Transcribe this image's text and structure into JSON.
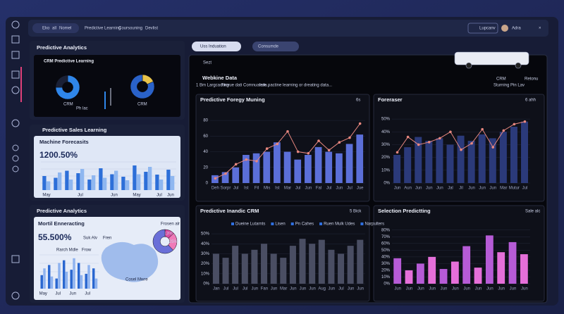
{
  "header": {
    "tabs": [
      "Eko",
      "all",
      "Nomel",
      "Predictive Learning",
      "Coursouning",
      "Devlist"
    ],
    "button": "Lupcanv",
    "user": "Adra"
  },
  "toolbar": {
    "search": "Uss Induation",
    "select": "Consumde"
  },
  "panel_1": {
    "title": "Predictive Analytics",
    "subtitle": "CRM Predictive Learning",
    "labels": [
      "CRM",
      "Ph lac",
      "CRM"
    ]
  },
  "panel_2": {
    "title": "Predictive Sales Learning",
    "kpi": "1200.50%"
  },
  "panel_3": {
    "title": "Predictive Analytics",
    "kpi": "55.500%",
    "chips": [
      "Frosen alr",
      "Suk Alv",
      "Fren",
      "Rarch Mdle",
      "Frow"
    ],
    "map_label": "Cosel Mwre"
  },
  "main": {
    "tab": "Sezt",
    "title": "Webkine Data",
    "filters": [
      "1 Bm Largcacting",
      "Fiovue dati Comnuatem...",
      "Irde pactine learning or dreating data..."
    ],
    "right": [
      "CRM",
      "Retonu",
      "Sturning",
      "Pin Lav"
    ]
  },
  "chart_data": [
    {
      "type": "pie",
      "values": [
        75,
        25
      ],
      "colors": [
        "#2f86ea",
        "#1a2036"
      ],
      "hole": 0.45
    },
    {
      "type": "pie",
      "values": [
        18,
        82
      ],
      "colors": [
        "#e8c34a",
        "#2a62c9"
      ],
      "hole": 0.45
    },
    {
      "type": "bar",
      "title": "Machine Forecasits",
      "categories": [
        "May",
        null,
        null,
        "Jul",
        null,
        null,
        "Jun",
        null,
        "May",
        null,
        "Jul",
        "Jun"
      ],
      "series": [
        {
          "color": "#2d6fd8",
          "values": [
            40,
            35,
            55,
            48,
            30,
            62,
            45,
            38,
            70,
            52,
            44,
            58
          ]
        },
        {
          "color": "#8fb7f0",
          "values": [
            25,
            50,
            30,
            60,
            42,
            35,
            55,
            28,
            45,
            66,
            30,
            40
          ]
        }
      ],
      "ylim": [
        0,
        80
      ],
      "grid": true
    },
    {
      "type": "bar",
      "title": "Mortil Enneracting",
      "categories": [
        "May",
        null,
        "Jul",
        null,
        "Jun",
        null,
        "Jul",
        null
      ],
      "series": [
        {
          "color": "#2a67d0",
          "values": [
            20,
            35,
            15,
            42,
            28,
            38,
            22,
            30
          ]
        },
        {
          "color": "#8fb3ef",
          "values": [
            30,
            18,
            38,
            25,
            45,
            20,
            35,
            15
          ]
        }
      ],
      "ylim": [
        0,
        50
      ],
      "grid": true
    },
    {
      "type": "pie",
      "values": [
        13,
        25,
        62
      ],
      "value_labels": [
        "13%",
        "25%",
        null
      ],
      "colors": [
        "#d94aa0",
        "#f07ab8",
        "#6a6fd8"
      ],
      "hole": 0.4
    },
    {
      "type": "combo",
      "title": "Predictive Foregy Muning",
      "control": "6s",
      "categories": [
        "Deh",
        "Sorpr",
        "Jul",
        "Ist",
        "Fil",
        "Mis",
        "Ist",
        "Mar",
        "Jul",
        "Jun",
        "Fal",
        "Jul",
        "Jun",
        "Jul",
        "Jue"
      ],
      "series": [
        {
          "type": "bar",
          "color": "#5b6fd8",
          "values": [
            10,
            14,
            20,
            36,
            38,
            40,
            52,
            40,
            30,
            36,
            46,
            40,
            38,
            50,
            62
          ]
        },
        {
          "type": "line",
          "color": "#e8877f",
          "values": [
            6,
            12,
            24,
            30,
            28,
            44,
            50,
            66,
            40,
            38,
            54,
            42,
            52,
            58,
            76
          ]
        }
      ],
      "ylim": [
        0,
        90
      ],
      "yticks": [
        0,
        20,
        40,
        60,
        80
      ],
      "grid": true
    },
    {
      "type": "combo",
      "title": "Foreraser",
      "control": "6 ahh",
      "categories": [
        "Jun",
        "Aun",
        "Jun",
        "Jun",
        "Jun",
        "Jal",
        "Jil",
        "Jun",
        "Jun",
        "Jun",
        "Mar",
        "Mutur",
        "Jul"
      ],
      "series": [
        {
          "type": "bar",
          "color": "#2b3a7a",
          "values": [
            22,
            28,
            36,
            33,
            35,
            30,
            37,
            33,
            38,
            35,
            40,
            44,
            48
          ]
        },
        {
          "type": "line",
          "color": "#e8877f",
          "values": [
            24,
            36,
            30,
            32,
            35,
            40,
            26,
            31,
            42,
            28,
            41,
            46,
            48
          ]
        }
      ],
      "ylim": [
        0,
        55
      ],
      "yticks": [
        {
          "value": 0,
          "label": "0%"
        },
        {
          "value": 10,
          "label": "10%"
        },
        {
          "value": 20,
          "label": "20%"
        },
        {
          "value": 30,
          "label": "30%"
        },
        {
          "value": 40,
          "label": "40%"
        },
        {
          "value": 50,
          "label": "50%"
        }
      ],
      "grid": true
    },
    {
      "type": "bar",
      "title": "Predictive Inandic CRM",
      "control": "5 Bick",
      "legend": [
        "Dueine Lutarnts",
        "Lisen",
        "Pn Cahes",
        "Ruen Mulk Udes",
        "Narpulters"
      ],
      "legend_color": "#2f6fe0",
      "categories": [
        "Jan",
        "Jul",
        "Jul",
        "Jul",
        "Jun",
        "Fan",
        "Jun",
        "Mar",
        "Jun",
        "Jun",
        "Jun",
        "Aug",
        "Jun",
        "Jul",
        "Jun",
        "Jun"
      ],
      "series": [
        {
          "color": "#4a4e63",
          "values": [
            30,
            26,
            38,
            30,
            34,
            40,
            30,
            26,
            38,
            45,
            40,
            44,
            34,
            30,
            38,
            44
          ]
        }
      ],
      "ylim": [
        0,
        55
      ],
      "yticks": [
        {
          "value": 0,
          "label": "0%"
        },
        {
          "value": 10,
          "label": "10%"
        },
        {
          "value": 20,
          "label": "20%"
        },
        {
          "value": 30,
          "label": "30%"
        },
        {
          "value": 40,
          "label": "40%"
        },
        {
          "value": 50,
          "label": "50%"
        }
      ],
      "grid": true
    },
    {
      "type": "bar",
      "title": "Selection Predictting",
      "control": "Sale alc",
      "categories": [
        "Jun",
        "Jun",
        "Jun",
        "Jun",
        "Jun",
        "Jun",
        "Jun",
        "Jun",
        "Jun",
        "Jun",
        "Jun",
        "Jun"
      ],
      "series": [
        {
          "colors": [
            "#b65bd6",
            "#e56fd9"
          ],
          "values": [
            38,
            20,
            30,
            40,
            22,
            33,
            56,
            24,
            72,
            47,
            62,
            44
          ]
        }
      ],
      "ylim": [
        0,
        85
      ],
      "yticks": [
        {
          "value": 0,
          "label": "0%"
        },
        {
          "value": 10,
          "label": "10%"
        },
        {
          "value": 20,
          "label": "20%"
        },
        {
          "value": 30,
          "label": "30%"
        },
        {
          "value": 40,
          "label": "40%"
        },
        {
          "value": 50,
          "label": "50%"
        },
        {
          "value": 60,
          "label": "60%"
        },
        {
          "value": 70,
          "label": "70%"
        },
        {
          "value": 80,
          "label": "80%"
        }
      ],
      "grid": true
    }
  ]
}
